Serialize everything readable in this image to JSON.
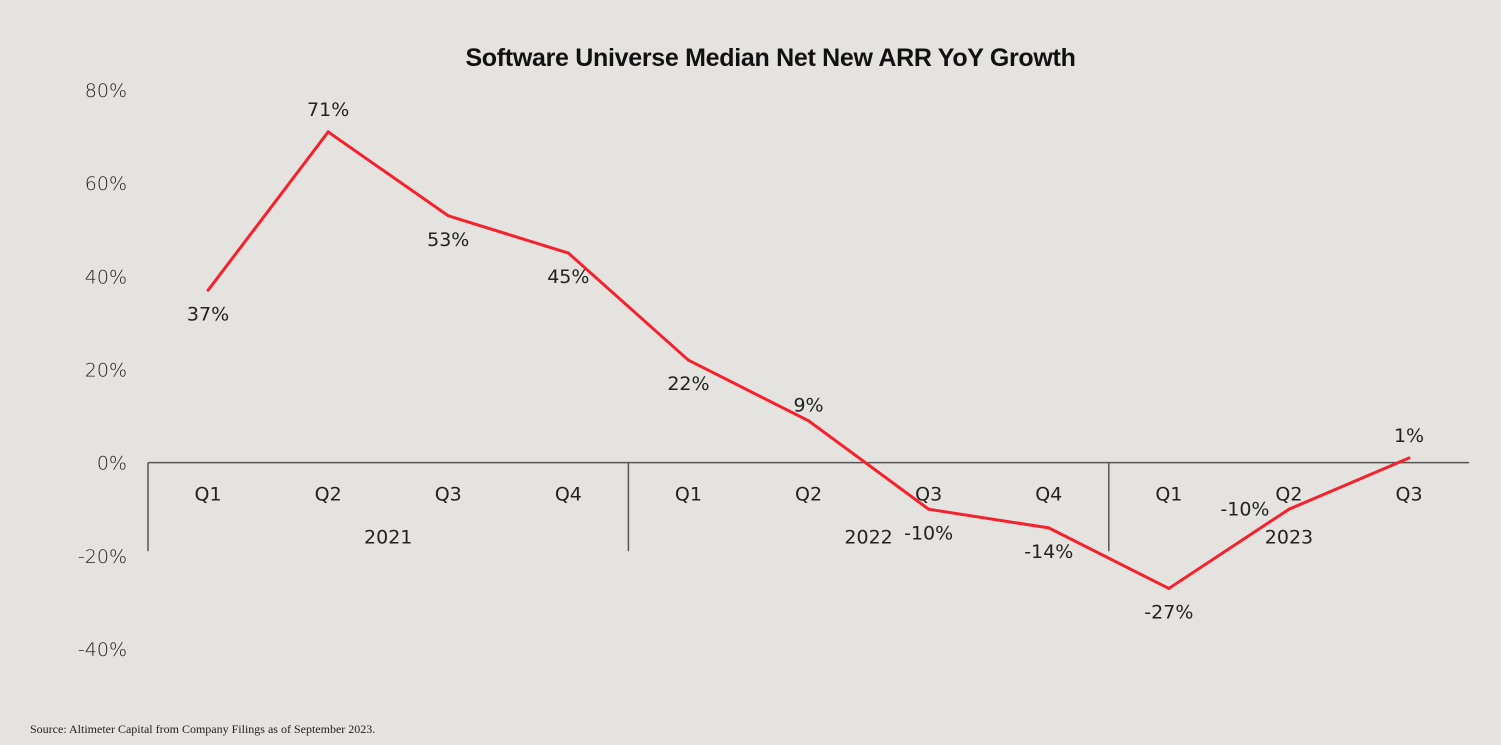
{
  "chart_data": {
    "type": "line",
    "title": "Software Universe Median Net New ARR YoY Growth",
    "xlabel": "",
    "ylabel": "",
    "ylim": [
      -40,
      80
    ],
    "yticks": [
      80,
      60,
      40,
      20,
      0,
      -20,
      -40
    ],
    "ytick_labels": [
      "80%",
      "60%",
      "40%",
      "20%",
      "0%",
      "-20%",
      "-40%"
    ],
    "grid": false,
    "legend": "none",
    "categories": [
      "Q1",
      "Q2",
      "Q3",
      "Q4",
      "Q1",
      "Q2",
      "Q3",
      "Q4",
      "Q1",
      "Q2",
      "Q3"
    ],
    "groups": [
      {
        "label": "2021",
        "count": 4
      },
      {
        "label": "2022",
        "count": 4
      },
      {
        "label": "2023",
        "count": 3
      }
    ],
    "series": [
      {
        "name": "Median Net New ARR YoY Growth",
        "color": "#f5222d",
        "values": [
          37,
          71,
          53,
          45,
          22,
          9,
          -10,
          -14,
          -27,
          -10,
          1
        ],
        "labels": [
          "37%",
          "71%",
          "53%",
          "45%",
          "22%",
          "9%",
          "-10%",
          "-14%",
          "-27%",
          "-10%",
          "1%"
        ]
      }
    ]
  },
  "footer": {
    "source": "Source: Altimeter Capital from Company Filings as of September 2023."
  }
}
